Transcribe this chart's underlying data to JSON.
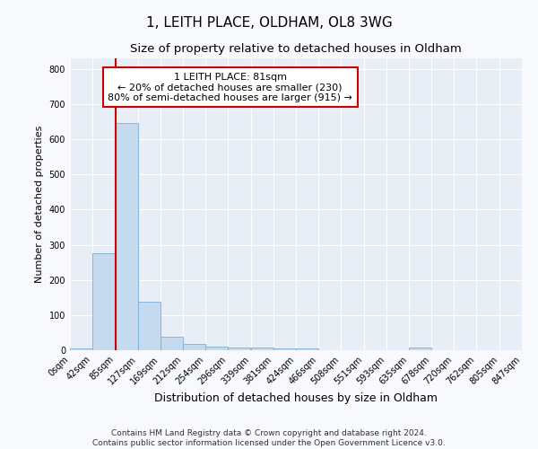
{
  "title": "1, LEITH PLACE, OLDHAM, OL8 3WG",
  "subtitle": "Size of property relative to detached houses in Oldham",
  "xlabel": "Distribution of detached houses by size in Oldham",
  "ylabel": "Number of detached properties",
  "footer_line1": "Contains HM Land Registry data © Crown copyright and database right 2024.",
  "footer_line2": "Contains public sector information licensed under the Open Government Licence v3.0.",
  "bin_edges": [
    0,
    42,
    85,
    127,
    169,
    212,
    254,
    296,
    339,
    381,
    424,
    466,
    508,
    551,
    593,
    635,
    678,
    720,
    762,
    805,
    847
  ],
  "bin_labels": [
    "0sqm",
    "42sqm",
    "85sqm",
    "127sqm",
    "169sqm",
    "212sqm",
    "254sqm",
    "296sqm",
    "339sqm",
    "381sqm",
    "424sqm",
    "466sqm",
    "508sqm",
    "551sqm",
    "593sqm",
    "635sqm",
    "678sqm",
    "720sqm",
    "762sqm",
    "805sqm",
    "847sqm"
  ],
  "bar_heights": [
    5,
    275,
    645,
    138,
    38,
    18,
    11,
    8,
    8,
    6,
    4,
    0,
    0,
    0,
    0,
    7,
    0,
    0,
    0,
    0
  ],
  "bar_color": "#c5d9ef",
  "bar_edge_color": "#7aafd4",
  "ylim_max": 830,
  "yticks": [
    0,
    100,
    200,
    300,
    400,
    500,
    600,
    700,
    800
  ],
  "red_line_x": 85,
  "red_line_color": "#cc0000",
  "ann_line1": "1 LEITH PLACE: 81sqm",
  "ann_line2": "← 20% of detached houses are smaller (230)",
  "ann_line3": "80% of semi-detached houses are larger (915) →",
  "fig_bg_color": "#f7f9fc",
  "plot_bg_color": "#e8eef5",
  "grid_color": "#ffffff",
  "title_fontsize": 11,
  "subtitle_fontsize": 9.5,
  "ylabel_fontsize": 8,
  "xlabel_fontsize": 9,
  "tick_fontsize": 7,
  "ann_fontsize": 8,
  "footer_fontsize": 6.5
}
